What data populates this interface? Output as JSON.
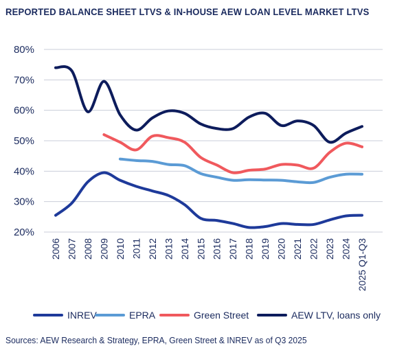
{
  "title": "REPORTED BALANCE SHEET LTVS & IN-HOUSE AEW LOAN LEVEL MARKET LTVS",
  "source": "Sources: AEW Research & Strategy, EPRA, Green Street & INREV as of Q3 2025",
  "chart_data": {
    "type": "line",
    "categories": [
      "2006",
      "2007",
      "2008",
      "2009",
      "2010",
      "2011",
      "2012",
      "2013",
      "2014",
      "2015",
      "2016",
      "2017",
      "2018",
      "2019",
      "2020",
      "2021",
      "2022",
      "2023",
      "2024",
      "2025 Q1-Q3"
    ],
    "ylim": [
      20,
      80
    ],
    "yticks": [
      20,
      30,
      40,
      50,
      60,
      70,
      80
    ],
    "ytick_labels": [
      "20%",
      "30%",
      "40%",
      "50%",
      "60%",
      "70%",
      "80%"
    ],
    "grid": "horizontal",
    "legend": "bottom",
    "series": [
      {
        "name": "INREV",
        "color": "#1e3a9a",
        "values": [
          25.5,
          29.5,
          36.5,
          39.5,
          37,
          35,
          33.5,
          32,
          29,
          24.5,
          23.8,
          22.8,
          21.5,
          21.8,
          22.8,
          22.5,
          22.5,
          24,
          25.3,
          25.5
        ]
      },
      {
        "name": "EPRA",
        "color": "#5b9bd5",
        "values": [
          null,
          null,
          null,
          null,
          44,
          43.5,
          43.2,
          42.2,
          41.8,
          39.2,
          38,
          37,
          37.2,
          37.1,
          37,
          36.5,
          36.3,
          38,
          39,
          39
        ]
      },
      {
        "name": "Green Street",
        "color": "#f0595d",
        "values": [
          null,
          null,
          null,
          52,
          49.5,
          47,
          51.5,
          51,
          49.5,
          44.5,
          42,
          39.5,
          40.3,
          40.7,
          42.2,
          42,
          41,
          46.2,
          49.2,
          48
        ]
      },
      {
        "name": "AEW LTV, loans only",
        "color": "#0d1c5c",
        "values": [
          74,
          73,
          59.5,
          69.5,
          58.5,
          53.5,
          57.5,
          59.8,
          59,
          55.5,
          54,
          54,
          57.8,
          59,
          55,
          56.5,
          55,
          49.5,
          52.5,
          54.7
        ]
      }
    ]
  }
}
